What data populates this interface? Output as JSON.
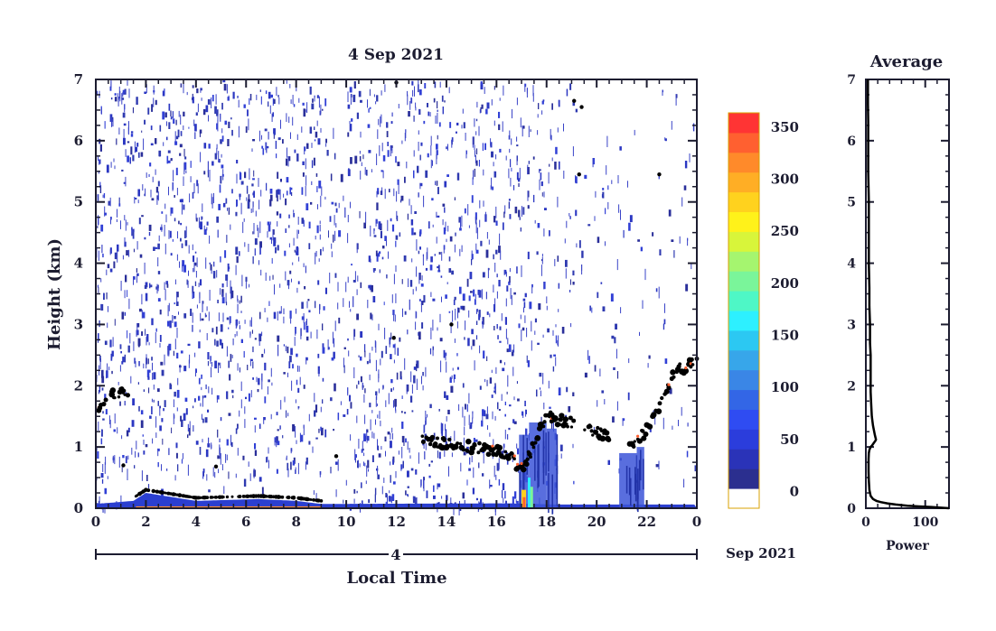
{
  "chart_data": [
    {
      "type": "heatmap",
      "title": "4 Sep 2021",
      "xlabel": "Local Time",
      "ylabel": "Height (km)",
      "x_ticks": [
        "0",
        "2",
        "4",
        "6",
        "8",
        "10",
        "12",
        "14",
        "16",
        "18",
        "20",
        "22",
        "0"
      ],
      "y_ticks": [
        "0",
        "1",
        "2",
        "3",
        "4",
        "5",
        "6",
        "7"
      ],
      "xlim": [
        0,
        24
      ],
      "ylim": [
        0,
        7
      ],
      "date_bar": {
        "day_label": "4",
        "month_label": "Sep 2021"
      },
      "colorbar": {
        "ticks": [
          "0",
          "50",
          "100",
          "150",
          "200",
          "250",
          "300",
          "350"
        ],
        "range": [
          0,
          380
        ],
        "colors": [
          "#ffffff",
          "#2b2f8f",
          "#2a33b8",
          "#2b3ddc",
          "#2f4cf2",
          "#3366e6",
          "#3a86e6",
          "#37a6ea",
          "#2cc8f2",
          "#2df0ff",
          "#4ef7c6",
          "#7af59a",
          "#a5f56f",
          "#d8f53a",
          "#fff21a",
          "#ffd21e",
          "#ffae25",
          "#ff8a2a",
          "#ff6030",
          "#ff3434"
        ]
      },
      "features": [
        {
          "name": "cloud base",
          "x": [
            0,
            0.5,
            1.0,
            1.2,
            16.5,
            17.0,
            18.0,
            19.0,
            21.5,
            22.5,
            23.0,
            24.0
          ],
          "y": [
            1.55,
            1.8,
            1.9,
            1.85,
            0.9,
            0.6,
            1.5,
            1.4,
            1.0,
            1.6,
            2.2,
            2.4
          ]
        },
        {
          "name": "surface layer",
          "x": [
            0,
            1.5,
            2.0,
            4.0,
            6.5,
            8.0,
            9.0,
            16.5,
            18.5,
            20.5,
            24.0
          ],
          "y": [
            0.07,
            0.12,
            0.25,
            0.12,
            0.15,
            0.12,
            0.07,
            0.08,
            0.06,
            0.06,
            0.06
          ]
        }
      ]
    },
    {
      "type": "line",
      "title": "Average",
      "xlabel": "Power",
      "x_ticks": [
        "0",
        "100"
      ],
      "y_ticks": [
        "0",
        "1",
        "2",
        "3",
        "4",
        "5",
        "6",
        "7"
      ],
      "xlim": [
        0,
        140
      ],
      "ylim": [
        0,
        7
      ],
      "series": [
        {
          "x": [
            140,
            110,
            90,
            70,
            50,
            36,
            25,
            18,
            12,
            8,
            6,
            5,
            4.5,
            4.5,
            5,
            6,
            8,
            10,
            13,
            16,
            17,
            15,
            12,
            10,
            9,
            8,
            8,
            8,
            7,
            7,
            6,
            6,
            5,
            5,
            5,
            4,
            4,
            4,
            4,
            3.5,
            3.5,
            3.5
          ],
          "y": [
            0,
            0.02,
            0.03,
            0.04,
            0.06,
            0.08,
            0.1,
            0.12,
            0.15,
            0.2,
            0.3,
            0.45,
            0.6,
            0.8,
            0.9,
            0.95,
            1.0,
            1.02,
            1.06,
            1.1,
            1.12,
            1.2,
            1.35,
            1.5,
            1.7,
            1.9,
            2.2,
            2.5,
            2.7,
            3.0,
            3.3,
            3.6,
            4.0,
            4.5,
            5.0,
            5.5,
            5.8,
            6.0,
            6.3,
            6.6,
            6.9,
            7.0
          ]
        }
      ]
    }
  ]
}
